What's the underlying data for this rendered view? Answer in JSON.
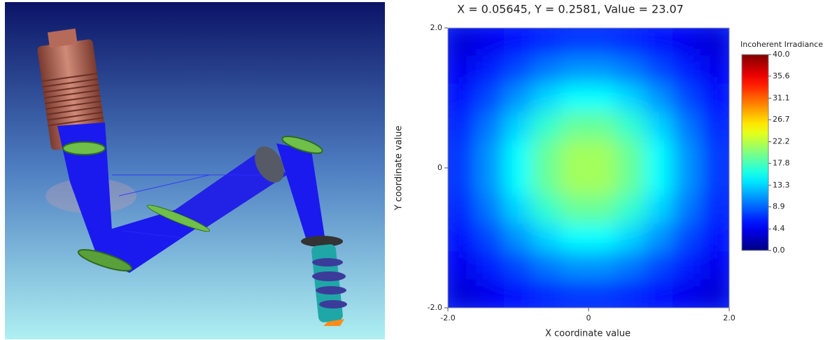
{
  "chart_data": {
    "type": "heatmap",
    "title": "X = 0.05645, Y = 0.2581, Value = 23.07",
    "xlabel": "X coordinate value",
    "ylabel": "Y coordinate value",
    "colorbar_label": "Incoherent Irradiance",
    "colormap": "jet",
    "xlim": [
      -2,
      2
    ],
    "ylim": [
      -2,
      2
    ],
    "zlim": [
      0,
      40
    ],
    "xticks": [
      {
        "value": -2,
        "label": "-2.0"
      },
      0,
      {
        "value": 2,
        "label": "2.0"
      }
    ],
    "yticks": [
      {
        "value": -2,
        "label": "-2.0"
      },
      0,
      {
        "value": 2,
        "label": "2.0"
      }
    ],
    "zticks": [
      {
        "value": 0,
        "label": "0.0"
      },
      4.4,
      8.9,
      13.3,
      17.8,
      22.2,
      26.7,
      31.1,
      35.6,
      {
        "value": 40,
        "label": "40.0"
      }
    ],
    "x": [
      -1.8,
      -1.4,
      -1.0,
      -0.6,
      -0.2,
      0.2,
      0.6,
      1.0,
      1.4,
      1.8
    ],
    "y": [
      1.8,
      1.4,
      1.0,
      0.6,
      0.2,
      -0.2,
      -0.6,
      -1.0,
      -1.4,
      -1.8
    ],
    "z": [
      [
        3.4,
        4.3,
        5.5,
        6.5,
        7.2,
        7.2,
        6.5,
        5.5,
        4.3,
        3.4
      ],
      [
        4.3,
        6.0,
        7.9,
        9.7,
        10.8,
        10.8,
        9.7,
        7.9,
        6.0,
        4.3
      ],
      [
        5.5,
        7.9,
        10.8,
        13.4,
        15.0,
        15.0,
        13.4,
        10.8,
        7.9,
        5.5
      ],
      [
        6.5,
        9.7,
        13.4,
        16.9,
        19.0,
        19.0,
        16.9,
        13.4,
        9.7,
        6.5
      ],
      [
        7.2,
        10.8,
        15.0,
        19.0,
        21.4,
        21.4,
        19.0,
        15.0,
        10.8,
        7.2
      ],
      [
        7.2,
        10.8,
        15.0,
        19.0,
        21.4,
        21.4,
        19.0,
        15.0,
        10.8,
        7.2
      ],
      [
        6.5,
        9.7,
        13.4,
        16.9,
        19.0,
        19.0,
        16.9,
        13.4,
        9.7,
        6.5
      ],
      [
        5.5,
        7.9,
        10.8,
        13.4,
        15.0,
        15.0,
        13.4,
        10.8,
        7.9,
        5.5
      ],
      [
        4.3,
        6.0,
        7.9,
        9.7,
        10.8,
        10.8,
        9.7,
        7.9,
        6.0,
        4.3
      ],
      [
        3.4,
        4.3,
        5.5,
        6.5,
        7.2,
        7.2,
        6.5,
        5.5,
        4.3,
        3.4
      ]
    ]
  }
}
